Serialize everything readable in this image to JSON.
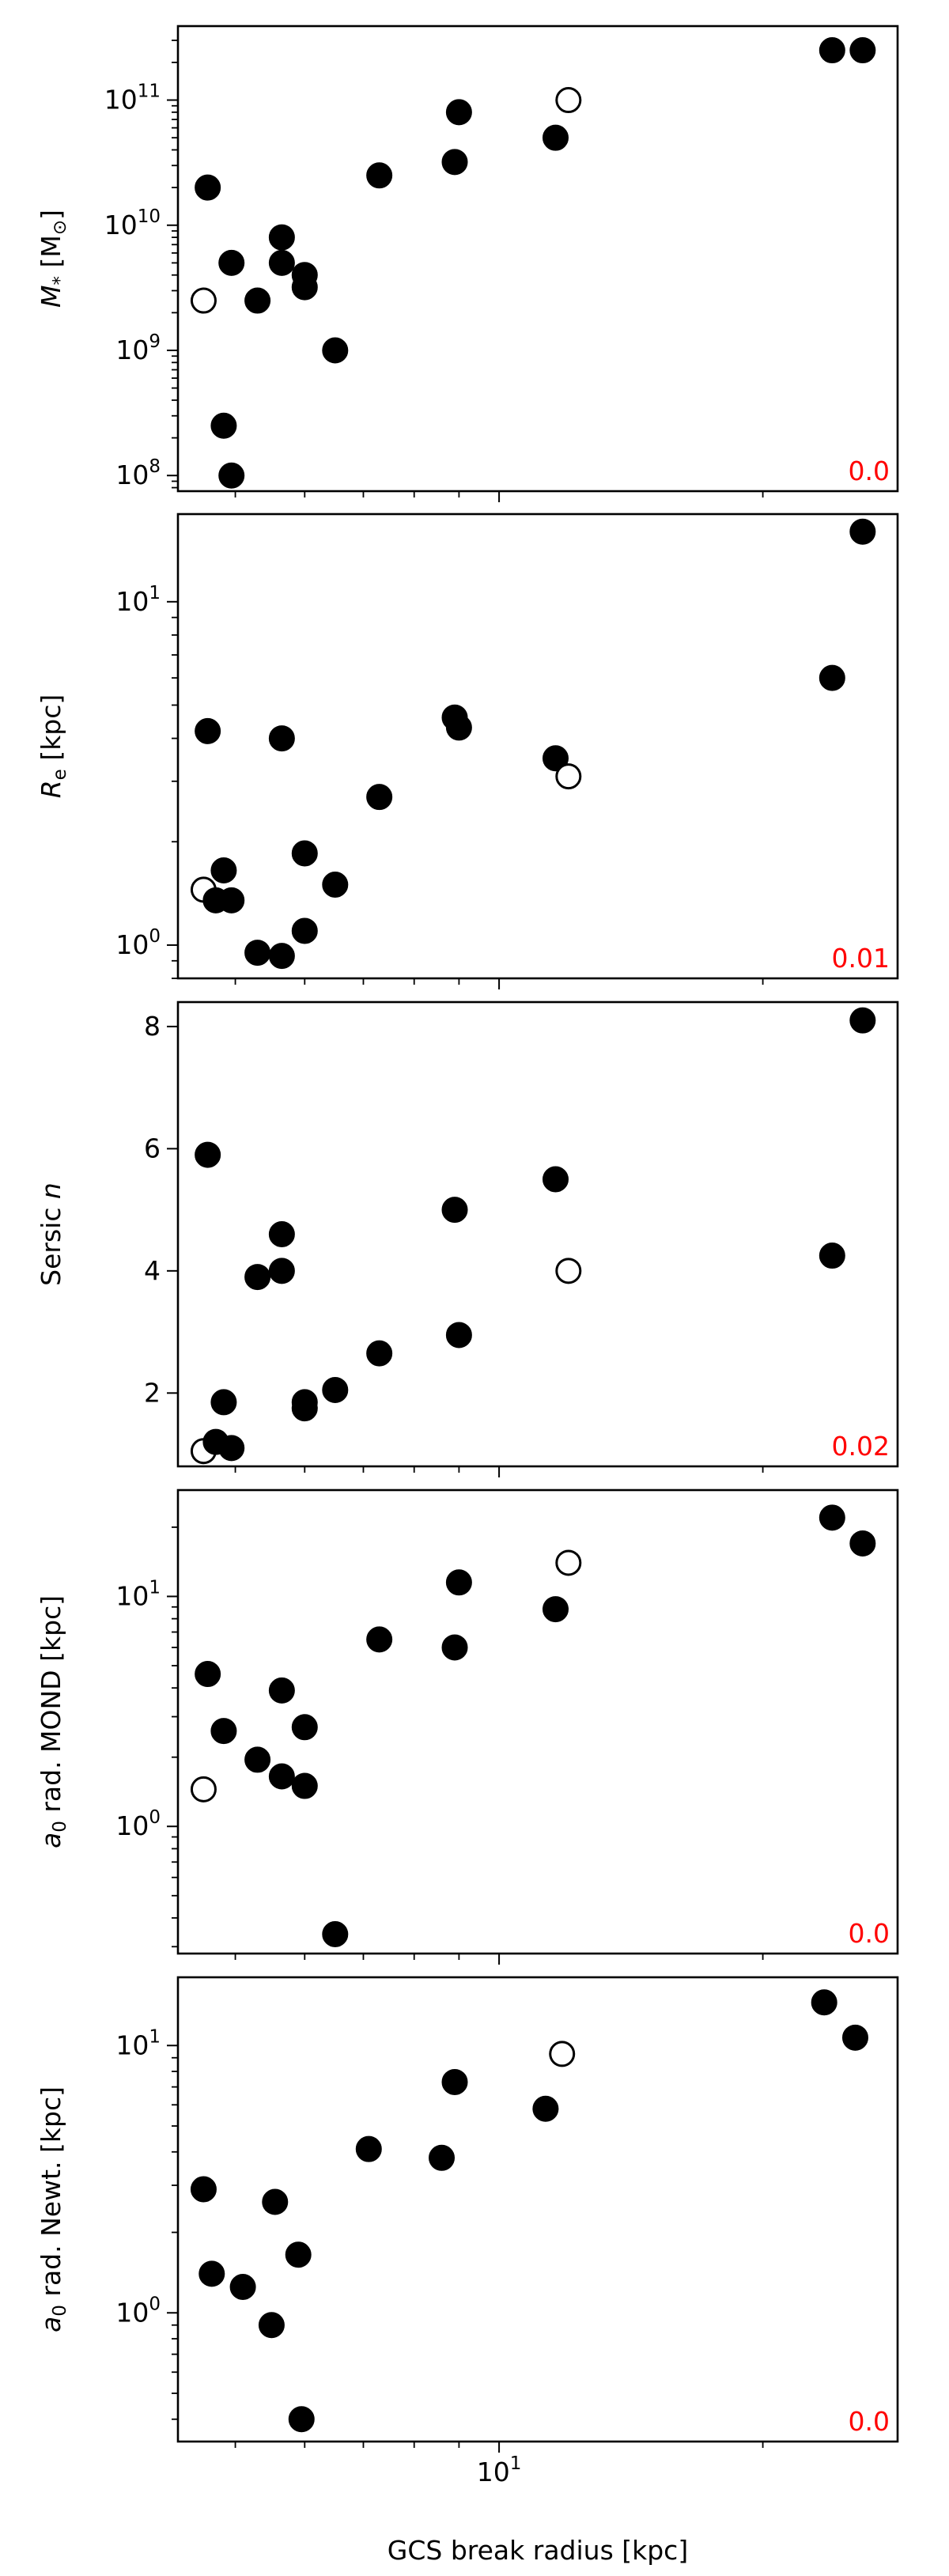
{
  "figure": {
    "xlabel": "GCS break radius [kpc]"
  },
  "chart_data": [
    {
      "type": "scatter",
      "panel": "stellar-mass",
      "ylabel_main": "M",
      "ylabel_sub": "*",
      "ylabel_rest": " [M",
      "ylabel_sub2": "⊙",
      "ylabel_end": "]",
      "yscale": "log",
      "ylim": [
        75000000.0,
        390000000000.0
      ],
      "yticks": [
        {
          "v": 100000000.0,
          "base": "10",
          "exp": "8"
        },
        {
          "v": 1000000000.0,
          "base": "10",
          "exp": "9"
        },
        {
          "v": 10000000000.0,
          "base": "10",
          "exp": "10"
        },
        {
          "v": 100000000000.0,
          "base": "10",
          "exp": "11"
        }
      ],
      "corner_value": "0.0",
      "corner_color": "#ff0000",
      "points": [
        {
          "x": 4.65,
          "y": 20000000000.0,
          "open": false
        },
        {
          "x": 4.6,
          "y": 2500000000.0,
          "open": true
        },
        {
          "x": 4.95,
          "y": 5000000000.0,
          "open": false
        },
        {
          "x": 5.3,
          "y": 2500000000.0,
          "open": false
        },
        {
          "x": 5.65,
          "y": 8000000000.0,
          "open": false
        },
        {
          "x": 5.65,
          "y": 5000000000.0,
          "open": false
        },
        {
          "x": 6.0,
          "y": 4000000000.0,
          "open": false
        },
        {
          "x": 6.0,
          "y": 3200000000.0,
          "open": false
        },
        {
          "x": 6.5,
          "y": 1000000000.0,
          "open": false
        },
        {
          "x": 4.85,
          "y": 250000000.0,
          "open": false
        },
        {
          "x": 4.95,
          "y": 100000000.0,
          "open": false
        },
        {
          "x": 7.3,
          "y": 25000000000.0,
          "open": false
        },
        {
          "x": 8.9,
          "y": 32000000000.0,
          "open": false
        },
        {
          "x": 9.0,
          "y": 80000000000.0,
          "open": false
        },
        {
          "x": 11.6,
          "y": 50000000000.0,
          "open": false
        },
        {
          "x": 12.0,
          "y": 100000000000.0,
          "open": true
        },
        {
          "x": 24.0,
          "y": 250000000000.0,
          "open": false
        },
        {
          "x": 26.0,
          "y": 250000000000.0,
          "open": false
        }
      ]
    },
    {
      "type": "scatter",
      "panel": "effective-radius",
      "ylabel_main": "R",
      "ylabel_sub": "e",
      "ylabel_rest": " [kpc]",
      "yscale": "log",
      "ylim": [
        0.8,
        18.0
      ],
      "yticks": [
        {
          "v": 1,
          "base": "10",
          "exp": "0"
        },
        {
          "v": 10,
          "base": "10",
          "exp": "1"
        }
      ],
      "corner_value": "0.01",
      "corner_color": "#ff0000",
      "points": [
        {
          "x": 4.65,
          "y": 4.2,
          "open": false
        },
        {
          "x": 4.6,
          "y": 1.45,
          "open": true
        },
        {
          "x": 4.75,
          "y": 1.35,
          "open": false
        },
        {
          "x": 4.85,
          "y": 1.65,
          "open": false
        },
        {
          "x": 4.95,
          "y": 1.35,
          "open": false
        },
        {
          "x": 5.3,
          "y": 0.95,
          "open": false
        },
        {
          "x": 5.65,
          "y": 0.93,
          "open": false
        },
        {
          "x": 5.65,
          "y": 4.0,
          "open": false
        },
        {
          "x": 6.0,
          "y": 1.85,
          "open": false
        },
        {
          "x": 6.0,
          "y": 1.1,
          "open": false
        },
        {
          "x": 6.5,
          "y": 1.5,
          "open": false
        },
        {
          "x": 7.3,
          "y": 2.7,
          "open": false
        },
        {
          "x": 8.9,
          "y": 4.6,
          "open": false
        },
        {
          "x": 9.0,
          "y": 4.3,
          "open": false
        },
        {
          "x": 11.6,
          "y": 3.5,
          "open": false
        },
        {
          "x": 12.0,
          "y": 3.1,
          "open": true
        },
        {
          "x": 24.0,
          "y": 6.0,
          "open": false
        },
        {
          "x": 26.0,
          "y": 16.0,
          "open": false
        }
      ]
    },
    {
      "type": "scatter",
      "panel": "sersic-index",
      "ylabel_main": "Sersic ",
      "ylabel_italic": "n",
      "yscale": "linear",
      "ylim": [
        0.8,
        8.4
      ],
      "yticks": [
        {
          "v": 2,
          "label": "2"
        },
        {
          "v": 4,
          "label": "4"
        },
        {
          "v": 6,
          "label": "6"
        },
        {
          "v": 8,
          "label": "8"
        }
      ],
      "corner_value": "0.02",
      "corner_color": "#ff0000",
      "points": [
        {
          "x": 4.65,
          "y": 5.9,
          "open": false
        },
        {
          "x": 4.6,
          "y": 1.05,
          "open": true
        },
        {
          "x": 4.75,
          "y": 1.2,
          "open": false
        },
        {
          "x": 4.85,
          "y": 1.85,
          "open": false
        },
        {
          "x": 4.95,
          "y": 1.1,
          "open": false
        },
        {
          "x": 5.3,
          "y": 3.9,
          "open": false
        },
        {
          "x": 5.65,
          "y": 4.6,
          "open": false
        },
        {
          "x": 5.65,
          "y": 4.0,
          "open": false
        },
        {
          "x": 6.0,
          "y": 1.75,
          "open": false
        },
        {
          "x": 6.0,
          "y": 1.85,
          "open": false
        },
        {
          "x": 6.5,
          "y": 2.05,
          "open": false
        },
        {
          "x": 7.3,
          "y": 2.65,
          "open": false
        },
        {
          "x": 8.9,
          "y": 5.0,
          "open": false
        },
        {
          "x": 9.0,
          "y": 2.95,
          "open": false
        },
        {
          "x": 11.6,
          "y": 5.5,
          "open": false
        },
        {
          "x": 12.0,
          "y": 4.0,
          "open": true
        },
        {
          "x": 24.0,
          "y": 4.25,
          "open": false
        },
        {
          "x": 26.0,
          "y": 8.1,
          "open": false
        }
      ]
    },
    {
      "type": "scatter",
      "panel": "a0-radius-mond",
      "ylabel_main": "a",
      "ylabel_sub": "0",
      "ylabel_rest": " rad. MOND [kpc]",
      "yscale": "log",
      "ylim": [
        0.28,
        29.0
      ],
      "yticks": [
        {
          "v": 1,
          "base": "10",
          "exp": "0"
        },
        {
          "v": 10,
          "base": "10",
          "exp": "1"
        }
      ],
      "corner_value": "0.0",
      "corner_color": "#ff0000",
      "points": [
        {
          "x": 4.6,
          "y": 1.45,
          "open": true
        },
        {
          "x": 4.65,
          "y": 4.6,
          "open": false
        },
        {
          "x": 4.85,
          "y": 2.6,
          "open": false
        },
        {
          "x": 5.3,
          "y": 1.95,
          "open": false
        },
        {
          "x": 5.65,
          "y": 3.9,
          "open": false
        },
        {
          "x": 5.65,
          "y": 1.65,
          "open": false
        },
        {
          "x": 6.0,
          "y": 2.7,
          "open": false
        },
        {
          "x": 6.0,
          "y": 1.5,
          "open": false
        },
        {
          "x": 6.5,
          "y": 0.34,
          "open": false
        },
        {
          "x": 7.3,
          "y": 6.5,
          "open": false
        },
        {
          "x": 8.9,
          "y": 6.0,
          "open": false
        },
        {
          "x": 9.0,
          "y": 11.5,
          "open": false
        },
        {
          "x": 11.6,
          "y": 8.8,
          "open": false
        },
        {
          "x": 12.0,
          "y": 14.0,
          "open": true
        },
        {
          "x": 24.0,
          "y": 22.0,
          "open": false
        },
        {
          "x": 26.0,
          "y": 17.0,
          "open": false
        }
      ]
    },
    {
      "type": "scatter",
      "panel": "a0-radius-newtonian",
      "ylabel_main": "a",
      "ylabel_sub": "0",
      "ylabel_rest": " rad. Newt. [kpc]",
      "yscale": "log",
      "ylim": [
        0.33,
        18.0
      ],
      "yticks": [
        {
          "v": 1,
          "base": "10",
          "exp": "0"
        },
        {
          "v": 10,
          "base": "10",
          "exp": "1"
        }
      ],
      "corner_value": "0.0",
      "corner_color": "#ff0000",
      "points": [
        {
          "x": 4.6,
          "y": 2.9,
          "open": false
        },
        {
          "x": 4.7,
          "y": 1.4,
          "open": false
        },
        {
          "x": 5.1,
          "y": 1.25,
          "open": false
        },
        {
          "x": 5.5,
          "y": 0.9,
          "open": false
        },
        {
          "x": 5.55,
          "y": 2.6,
          "open": false
        },
        {
          "x": 5.9,
          "y": 1.65,
          "open": false
        },
        {
          "x": 5.95,
          "y": 0.4,
          "open": false
        },
        {
          "x": 7.1,
          "y": 4.1,
          "open": false
        },
        {
          "x": 8.6,
          "y": 3.8,
          "open": false
        },
        {
          "x": 8.9,
          "y": 7.3,
          "open": false
        },
        {
          "x": 11.3,
          "y": 5.8,
          "open": false
        },
        {
          "x": 11.8,
          "y": 9.3,
          "open": true
        },
        {
          "x": 23.5,
          "y": 14.5,
          "open": false
        },
        {
          "x": 25.5,
          "y": 10.7,
          "open": false
        }
      ]
    }
  ],
  "xaxis": {
    "scale": "log",
    "lim": [
      4.3,
      28.5
    ],
    "major_ticks": [
      {
        "v": 10,
        "base": "10",
        "exp": "1"
      }
    ],
    "minor_ticks": [
      5,
      6,
      7,
      8,
      9,
      20
    ]
  }
}
